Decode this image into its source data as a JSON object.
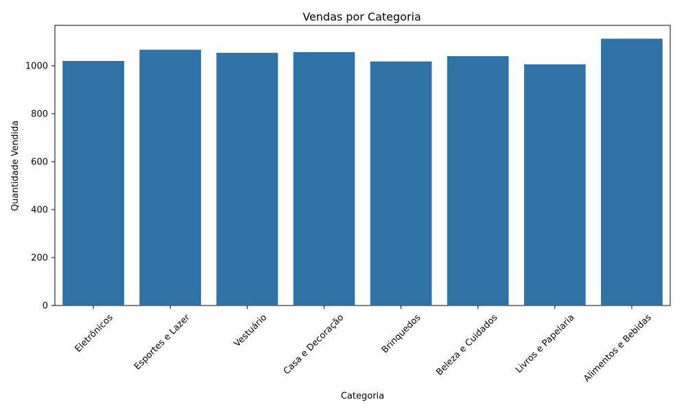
{
  "chart_data": {
    "type": "bar",
    "title": "Vendas por Categoria",
    "xlabel": "Categoria",
    "ylabel": "Quantidade Vendida",
    "categories": [
      "Eletrônicos",
      "Esportes e Lazer",
      "Vestuário",
      "Casa e Decoração",
      "Brinquedos",
      "Beleza e Cuidados",
      "Livros e Papelaria",
      "Alimentos e Bebidas"
    ],
    "values": [
      1020,
      1067,
      1054,
      1057,
      1018,
      1040,
      1006,
      1113
    ],
    "ylim": [
      0,
      1168.65
    ],
    "yticks": [
      0,
      200,
      400,
      600,
      800,
      1000
    ],
    "bar_color": "#2e72a6",
    "grid": false,
    "x_tick_rotation_degrees": 45
  }
}
